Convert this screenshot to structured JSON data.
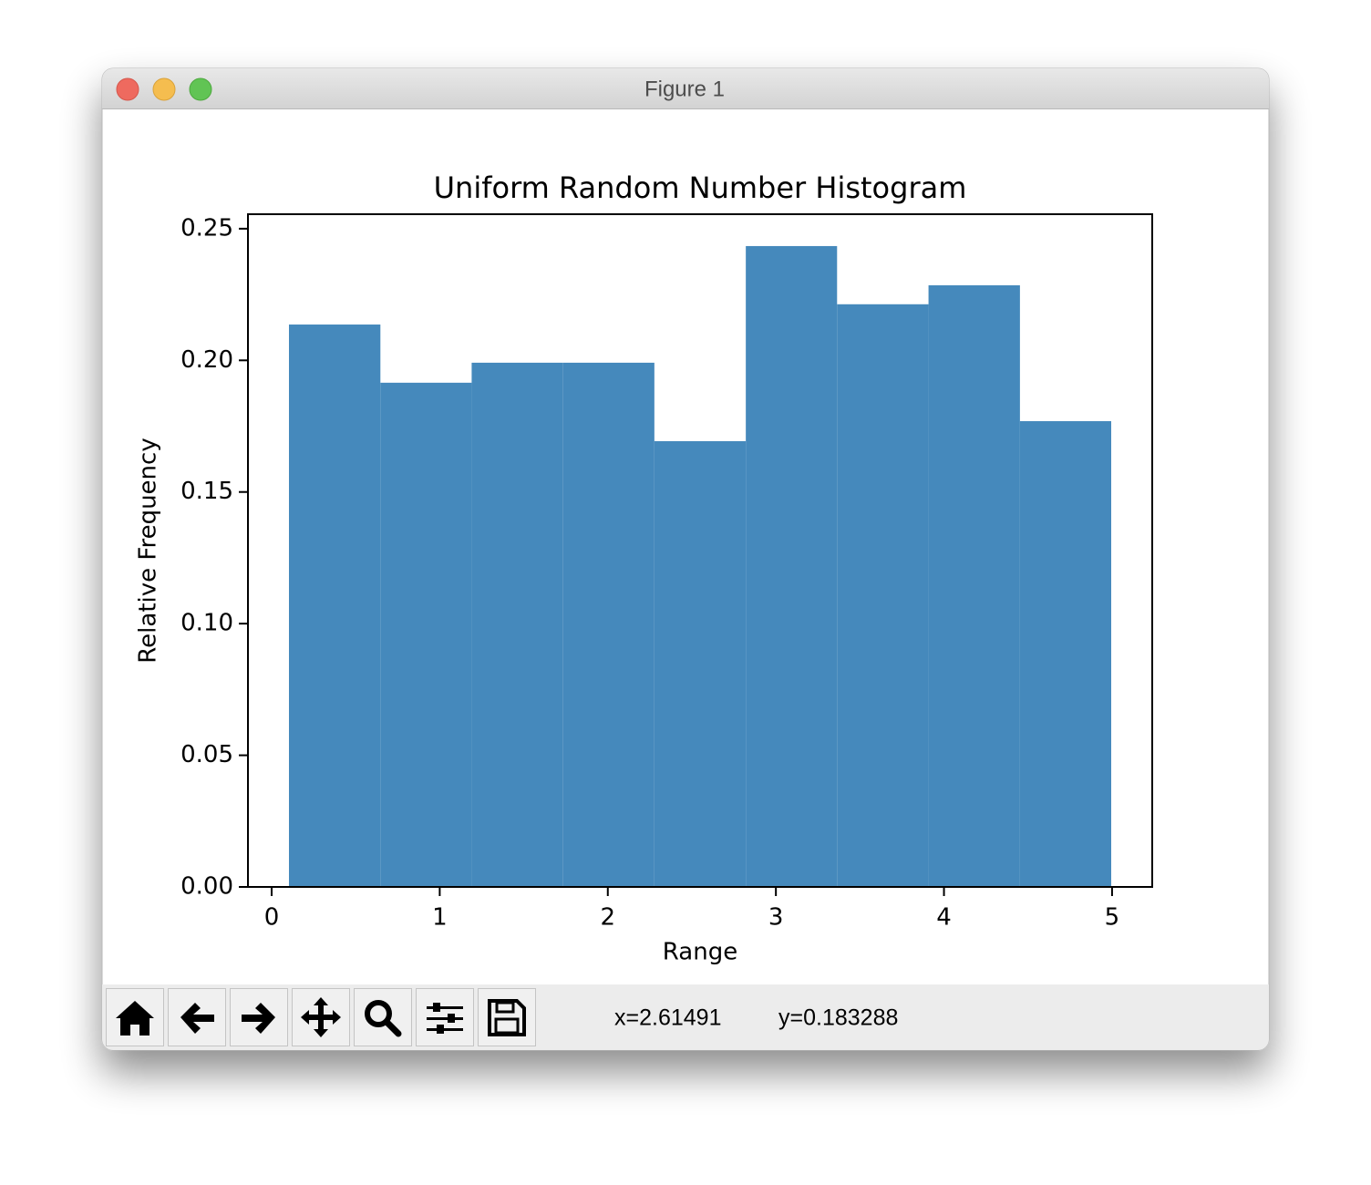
{
  "window": {
    "title": "Figure 1"
  },
  "chart_data": {
    "type": "histogram",
    "title": "Uniform Random Number Histogram",
    "x_label": "Range",
    "y_label": "Relative Frequency",
    "bins": [
      0.103,
      0.647,
      1.19,
      1.734,
      2.277,
      2.821,
      3.364,
      3.908,
      4.452,
      4.995
    ],
    "values": [
      0.2136,
      0.1915,
      0.1991,
      0.1991,
      0.1693,
      0.2434,
      0.2213,
      0.2285,
      0.1769
    ],
    "color": "#4589bc",
    "xlim": [
      -0.141,
      5.239
    ],
    "xticks": [
      0,
      1,
      2,
      3,
      4,
      5
    ],
    "ylim": [
      0,
      0.2555
    ],
    "yticks": [
      {
        "value": 0,
        "label": "0.00"
      },
      0.05,
      {
        "value": 0.1,
        "label": "0.10"
      },
      0.15,
      {
        "value": 0.2,
        "label": "0.20"
      },
      0.25
    ],
    "grid": false
  },
  "toolbar": {
    "status": [
      "x=2.61491",
      "y=0.183288"
    ]
  }
}
